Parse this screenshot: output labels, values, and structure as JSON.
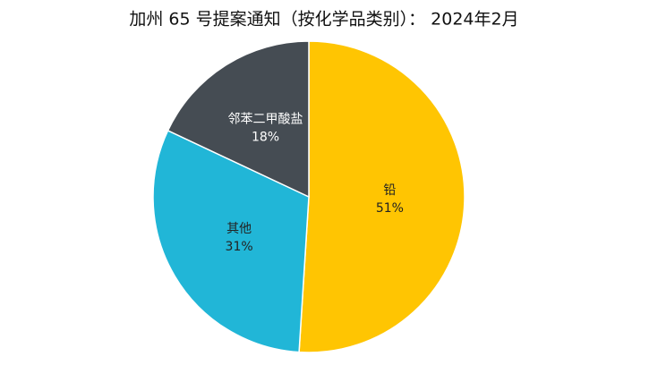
{
  "chart_data": {
    "type": "pie",
    "title": "加州 65 号提案通知（按化学品类别）： 2024年2月",
    "categories": [
      "铅",
      "其他",
      "邻苯二甲酸盐"
    ],
    "values": [
      51,
      31,
      18
    ],
    "value_labels": [
      "51%",
      "31%",
      "18%"
    ],
    "colors": [
      "#ffc502",
      "#21b6d7",
      "#454c53"
    ],
    "start_angle": 0,
    "direction": "clockwise"
  }
}
